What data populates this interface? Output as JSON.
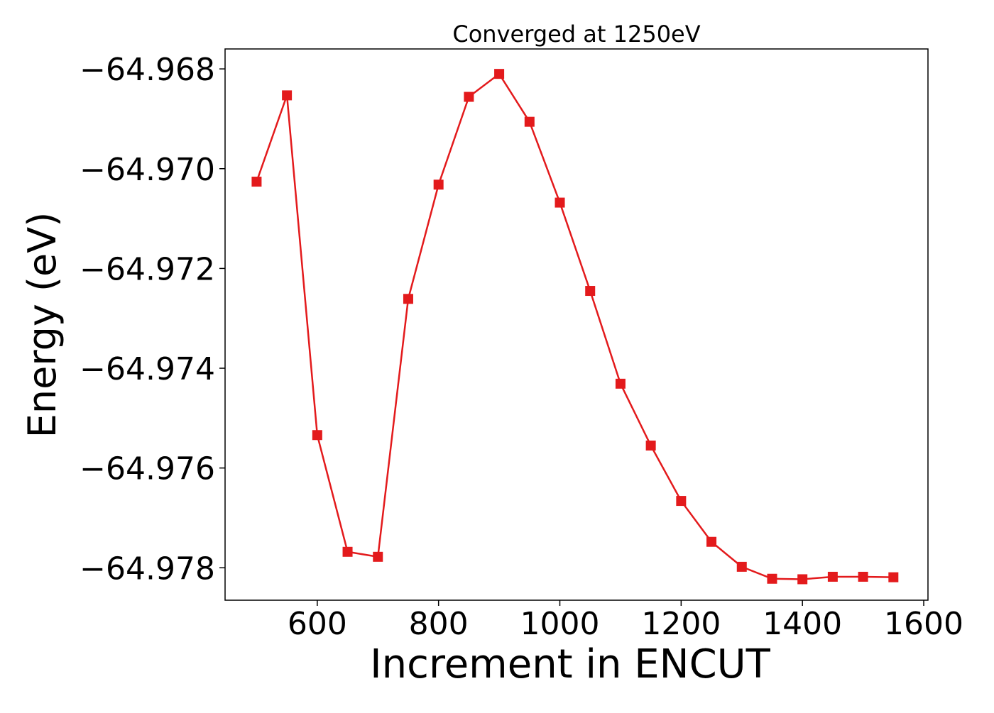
{
  "chart_data": {
    "type": "line",
    "title": "Converged at 1250eV",
    "xlabel": "Increment in ENCUT",
    "ylabel": "Energy (eV)",
    "xlim": [
      448,
      1607
    ],
    "ylim": [
      -64.97865,
      -64.9676
    ],
    "xticks": [
      600,
      800,
      1000,
      1200,
      1400,
      1600
    ],
    "xtick_labels": [
      "600",
      "800",
      "1000",
      "1200",
      "1400",
      "1600"
    ],
    "yticks": [
      -64.968,
      -64.97,
      -64.972,
      -64.974,
      -64.976,
      -64.978
    ],
    "ytick_labels": [
      "−64.968",
      "−64.970",
      "−64.972",
      "−64.974",
      "−64.976",
      "−64.978"
    ],
    "grid": false,
    "marker": "square",
    "color": "#e31a1c",
    "series": [
      {
        "x": [
          500,
          550,
          600,
          650,
          700,
          750,
          800,
          850,
          900,
          950,
          1000,
          1050,
          1100,
          1150,
          1200,
          1250,
          1300,
          1350,
          1400,
          1450,
          1500,
          1550
        ],
        "y": [
          -64.97026,
          -64.96853,
          -64.97534,
          -64.97768,
          -64.97778,
          -64.97261,
          -64.97032,
          -64.96856,
          -64.9681,
          -64.96906,
          -64.97068,
          -64.97245,
          -64.97431,
          -64.97555,
          -64.97666,
          -64.97748,
          -64.97798,
          -64.97822,
          -64.97823,
          -64.97818,
          -64.97818,
          -64.97819
        ]
      }
    ]
  }
}
